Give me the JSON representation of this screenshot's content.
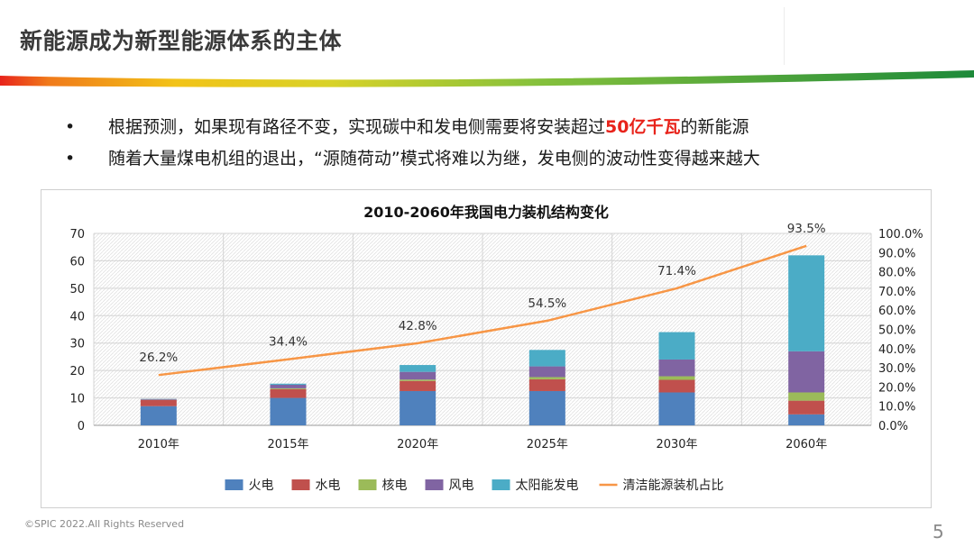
{
  "header": {
    "title": "新能源成为新型能源体系的主体"
  },
  "bullets": [
    {
      "symbol": "•",
      "before": "根据预测，如果现有路径不变，实现碳中和发电侧需要将安装超过",
      "highlight": "50亿千瓦",
      "after": "的新能源"
    },
    {
      "symbol": "•",
      "before": "随着大量煤电机组的退出，“源随荷动”模式将难以为继，发电侧的波动性变得越来越大",
      "highlight": "",
      "after": ""
    }
  ],
  "chart_data": {
    "type": "bar",
    "stacked": true,
    "title": "2010-2060年我国电力装机结构变化",
    "categories": [
      "2010年",
      "2015年",
      "2020年",
      "2025年",
      "2030年",
      "2060年"
    ],
    "series": [
      {
        "name": "火电",
        "color": "#4f81bd",
        "values": [
          7,
          10,
          12.5,
          12.5,
          12,
          4
        ]
      },
      {
        "name": "水电",
        "color": "#c0504d",
        "values": [
          2.2,
          3.2,
          3.7,
          4.3,
          4.6,
          5
        ]
      },
      {
        "name": "核电",
        "color": "#9bbb59",
        "values": [
          0.1,
          0.3,
          0.5,
          0.8,
          1.3,
          3
        ]
      },
      {
        "name": "风电",
        "color": "#8064a2",
        "values": [
          0.3,
          1.3,
          2.8,
          3.9,
          6.1,
          15
        ]
      },
      {
        "name": "太阳能发电",
        "color": "#4bacc6",
        "values": [
          0.05,
          0.4,
          2.5,
          6,
          10,
          35
        ]
      }
    ],
    "line": {
      "name": "清洁能源装机占比",
      "color": "#f79646",
      "values": [
        26.2,
        34.4,
        42.8,
        54.5,
        71.4,
        93.5
      ],
      "labels": [
        "26.2%",
        "34.4%",
        "42.8%",
        "54.5%",
        "71.4%",
        "93.5%"
      ]
    },
    "y_left": {
      "min": 0,
      "max": 70,
      "step": 10,
      "ticks": [
        "0",
        "10",
        "20",
        "30",
        "40",
        "50",
        "60",
        "70"
      ]
    },
    "y_right": {
      "min": 0,
      "max": 100,
      "step": 10,
      "ticks": [
        "0.0%",
        "10.0%",
        "20.0%",
        "30.0%",
        "40.0%",
        "50.0%",
        "60.0%",
        "70.0%",
        "80.0%",
        "90.0%",
        "100.0%"
      ]
    },
    "grid": true,
    "legend_position": "bottom"
  },
  "footer": {
    "copyright": "©SPIC 2022.All Rights Reserved",
    "page_number": "5"
  },
  "colors": {
    "title_text": "#3a3a3a",
    "highlight": "#e8231b",
    "stripe_left": "#e8231b",
    "stripe_mid": "#f2c318",
    "stripe_right": "#1d8a3a"
  }
}
